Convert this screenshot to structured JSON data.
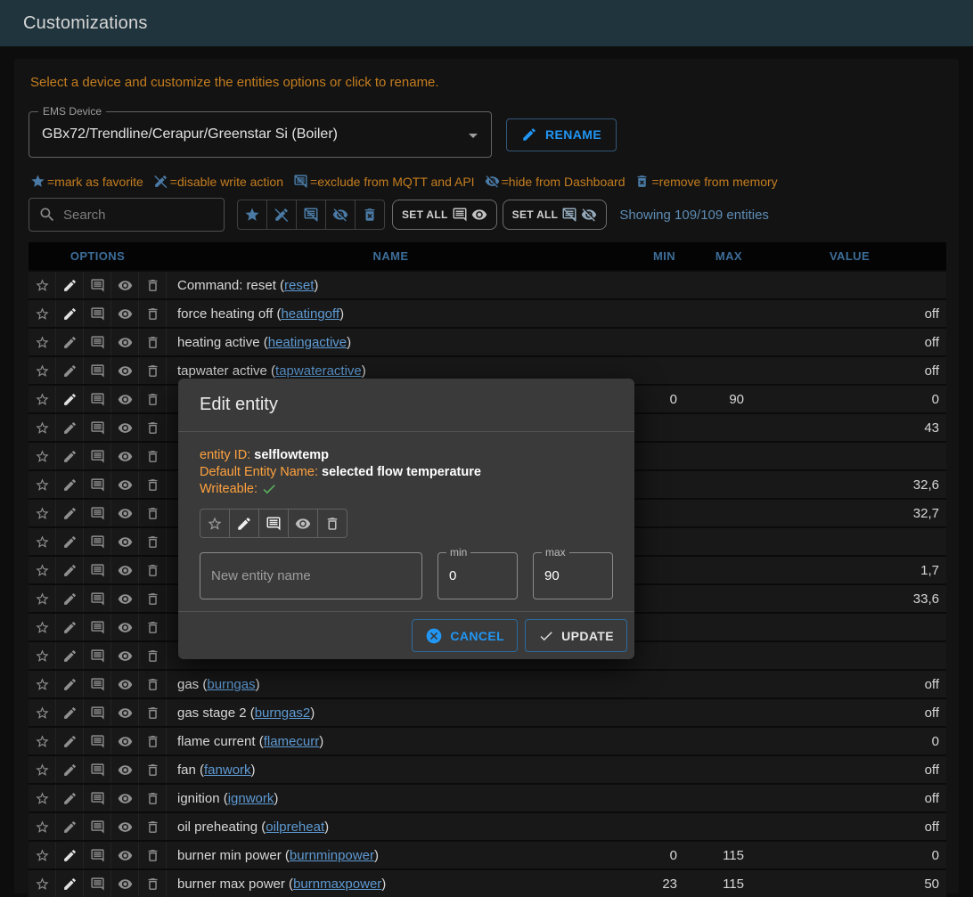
{
  "app_bar": {
    "title": "Customizations"
  },
  "intro": "Select a device and customize the entities options or click to rename.",
  "device_select": {
    "label": "EMS Device",
    "value": "GBx72/Trendline/Cerapur/Greenstar Si (Boiler)"
  },
  "rename_button": "RENAME",
  "legend": [
    {
      "icon": "star-filled",
      "text": "=mark as favorite"
    },
    {
      "icon": "edit-off",
      "text": "=disable write action"
    },
    {
      "icon": "comment-off",
      "text": "=exclude from MQTT and API"
    },
    {
      "icon": "eye-off",
      "text": "=hide from Dashboard"
    },
    {
      "icon": "delete-forever",
      "text": "=remove from memory"
    }
  ],
  "controls": {
    "search_placeholder": "Search",
    "filter_icons": [
      "star-filled",
      "edit-off",
      "comment-off",
      "eye-off",
      "delete-forever"
    ],
    "set_all_show": {
      "label": "SET ALL",
      "icons": [
        "comment",
        "eye"
      ]
    },
    "set_all_hide": {
      "label": "SET ALL",
      "icons": [
        "comment-off",
        "eye-off"
      ]
    },
    "showing": "Showing 109/109 entities"
  },
  "table": {
    "headers": {
      "options": "OPTIONS",
      "name": "NAME",
      "min": "MIN",
      "max": "MAX",
      "value": "VALUE"
    },
    "row_option_icons": [
      "star",
      "edit",
      "comment",
      "eye",
      "delete"
    ],
    "rows": [
      {
        "label": "Command: reset",
        "id": "reset",
        "writeable": true,
        "min": "",
        "max": "",
        "value": ""
      },
      {
        "label": "force heating off",
        "id": "heatingoff",
        "writeable": true,
        "min": "",
        "max": "",
        "value": "off"
      },
      {
        "label": "heating active",
        "id": "heatingactive",
        "writeable": false,
        "min": "",
        "max": "",
        "value": "off"
      },
      {
        "label": "tapwater active",
        "id": "tapwateractive",
        "writeable": false,
        "min": "",
        "max": "",
        "value": "off"
      },
      {
        "label": "",
        "id": "",
        "writeable": true,
        "min": "0",
        "max": "90",
        "value": "0"
      },
      {
        "label": "",
        "id": "",
        "writeable": false,
        "min": "",
        "max": "",
        "value": "43"
      },
      {
        "label": "",
        "id": "",
        "writeable": false,
        "min": "",
        "max": "",
        "value": ""
      },
      {
        "label": "",
        "id": "",
        "writeable": false,
        "min": "",
        "max": "",
        "value": "32,6"
      },
      {
        "label": "",
        "id": "",
        "writeable": false,
        "min": "",
        "max": "",
        "value": "32,7"
      },
      {
        "label": "",
        "id": "",
        "writeable": false,
        "min": "",
        "max": "",
        "value": ""
      },
      {
        "label": "",
        "id": "",
        "writeable": false,
        "min": "",
        "max": "",
        "value": "1,7"
      },
      {
        "label": "",
        "id": "",
        "writeable": false,
        "min": "",
        "max": "",
        "value": "33,6"
      },
      {
        "label": "",
        "id": "",
        "writeable": false,
        "min": "",
        "max": "",
        "value": ""
      },
      {
        "label": "",
        "id": "",
        "writeable": false,
        "min": "",
        "max": "",
        "value": ""
      },
      {
        "label": "gas",
        "id": "burngas",
        "writeable": false,
        "min": "",
        "max": "",
        "value": "off"
      },
      {
        "label": "gas stage 2",
        "id": "burngas2",
        "writeable": false,
        "min": "",
        "max": "",
        "value": "off"
      },
      {
        "label": "flame current",
        "id": "flamecurr",
        "writeable": false,
        "min": "",
        "max": "",
        "value": "0"
      },
      {
        "label": "fan",
        "id": "fanwork",
        "writeable": false,
        "min": "",
        "max": "",
        "value": "off"
      },
      {
        "label": "ignition",
        "id": "ignwork",
        "writeable": false,
        "min": "",
        "max": "",
        "value": "off"
      },
      {
        "label": "oil preheating",
        "id": "oilpreheat",
        "writeable": false,
        "min": "",
        "max": "",
        "value": "off"
      },
      {
        "label": "burner min power",
        "id": "burnminpower",
        "writeable": true,
        "min": "0",
        "max": "115",
        "value": "0"
      },
      {
        "label": "burner max power",
        "id": "burnmaxpower",
        "writeable": true,
        "min": "23",
        "max": "115",
        "value": "50"
      }
    ]
  },
  "dialog": {
    "title": "Edit entity",
    "entity_id_label": "entity ID:",
    "entity_id": "selflowtemp",
    "default_name_label": "Default Entity Name:",
    "default_name": "selected flow temperature",
    "writeable_label": "Writeable:",
    "option_icons": [
      {
        "icon": "star",
        "state": "dim"
      },
      {
        "icon": "edit",
        "state": "bright"
      },
      {
        "icon": "comment",
        "state": "bright"
      },
      {
        "icon": "eye",
        "state": ""
      },
      {
        "icon": "delete",
        "state": ""
      }
    ],
    "name_placeholder": "New entity name",
    "min_label": "min",
    "min_value": "0",
    "max_label": "max",
    "max_value": "90",
    "cancel_button": "CANCEL",
    "update_button": "UPDATE"
  },
  "colors": {
    "app_bar": "#20343d",
    "card": "#131313",
    "accent_orange": "#c57d1f",
    "dialog_orange": "#ffa23e",
    "primary_blue": "#2196f3",
    "link_blue": "#5e9ad3",
    "header_blue": "#3d6d99",
    "writeable_check_green": "#5cb860"
  }
}
